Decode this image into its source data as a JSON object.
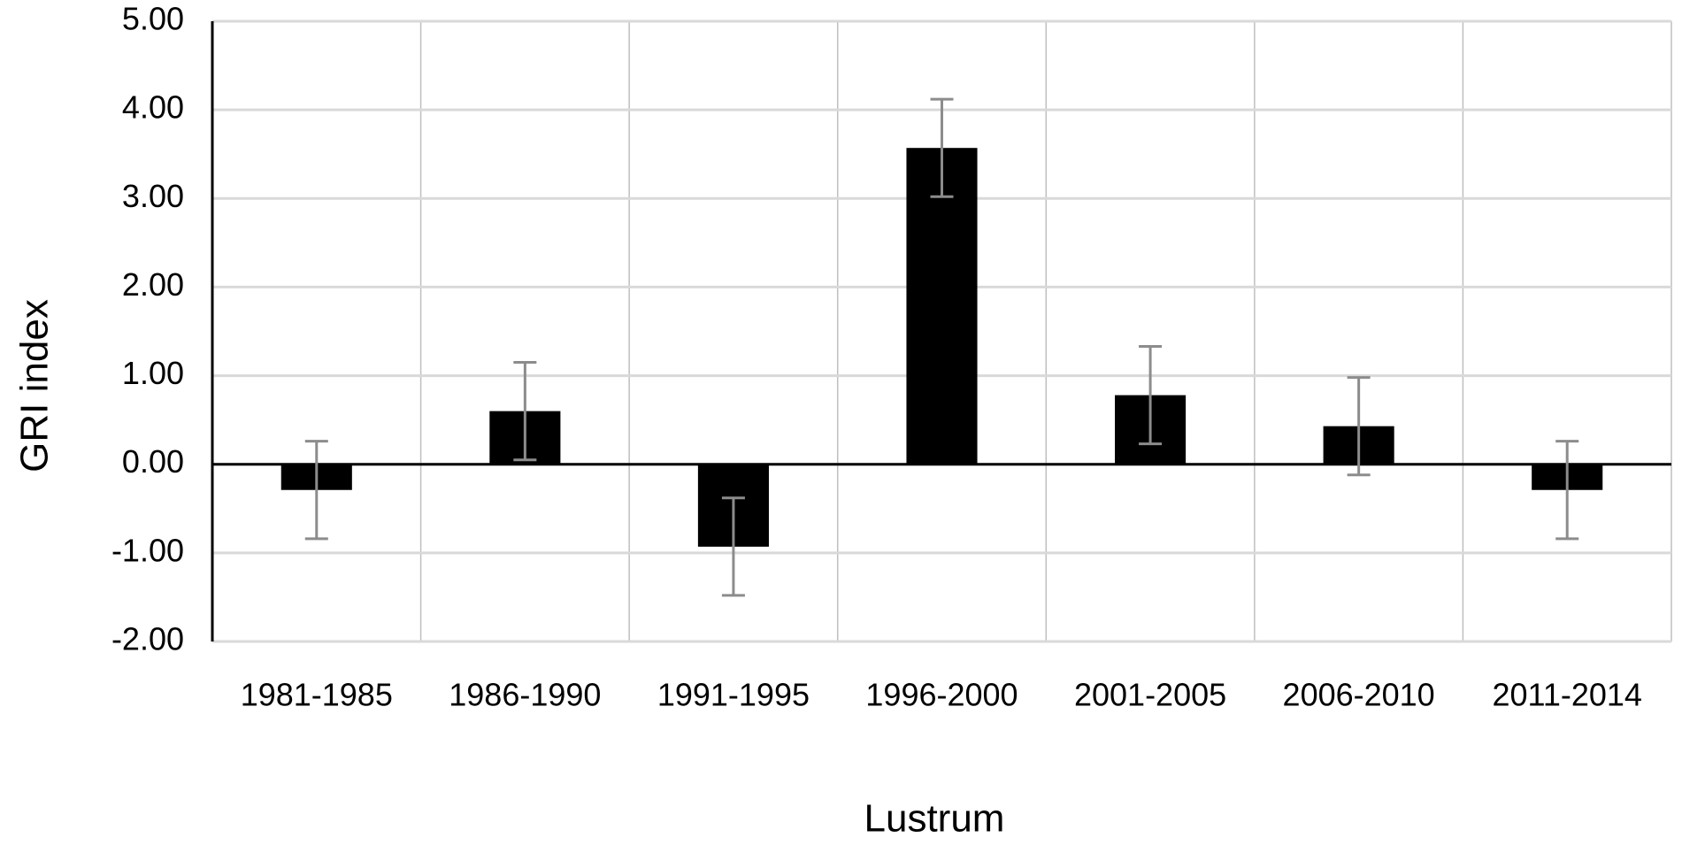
{
  "chart_data": {
    "type": "bar",
    "x_label": "Lustrum",
    "y_label": "GRI index",
    "categories": [
      "1981-1985",
      "1986-1990",
      "1991-1995",
      "1996-2000",
      "2001-2005",
      "2006-2010",
      "2011-2014"
    ],
    "values": [
      -0.29,
      0.6,
      -0.93,
      3.57,
      0.78,
      0.43,
      -0.29
    ],
    "errors": [
      0.55,
      0.55,
      0.55,
      0.55,
      0.55,
      0.55,
      0.55
    ],
    "color": "#000000",
    "error_color": "#8c8c8c",
    "ylim": [
      -2,
      5
    ],
    "yticks": [
      {
        "value": -2,
        "label": "-2.00"
      },
      {
        "value": -1,
        "label": "-1.00"
      },
      {
        "value": 0,
        "label": "0.00"
      },
      {
        "value": 1,
        "label": "1.00"
      },
      {
        "value": 2,
        "label": "2.00"
      },
      {
        "value": 3,
        "label": "3.00"
      },
      {
        "value": 4,
        "label": "4.00"
      },
      {
        "value": 5,
        "label": "5.00"
      }
    ],
    "grid": true
  }
}
